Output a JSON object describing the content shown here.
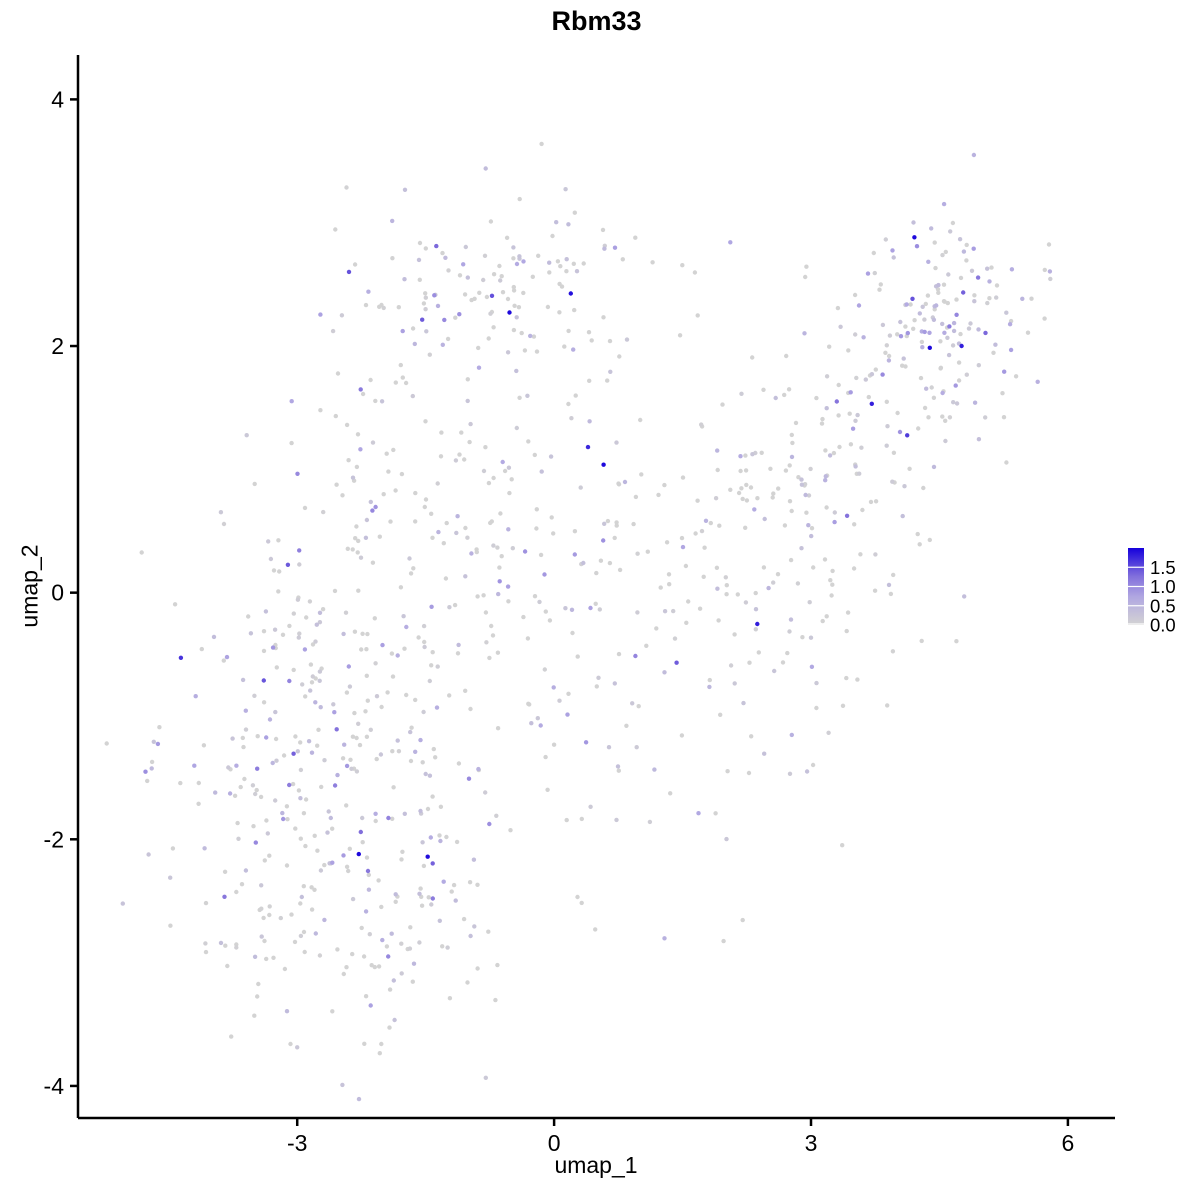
{
  "chart_data": {
    "type": "scatter",
    "title": "Rbm33",
    "xlabel": "umap_1",
    "ylabel": "umap_2",
    "x_ticks": [
      -3,
      0,
      3,
      6
    ],
    "y_ticks": [
      -4,
      -2,
      0,
      2,
      4
    ],
    "xlim": [
      -5.56,
      6.55
    ],
    "ylim": [
      -4.26,
      4.36
    ],
    "grid": false,
    "legend": {
      "position": "right",
      "labels": [
        "1.5",
        "1.0",
        "0.5",
        "0.0"
      ],
      "label_values": [
        1.5,
        1.0,
        0.5,
        0.0
      ],
      "tick_values": [
        0.0,
        0.5,
        1.0,
        1.5
      ],
      "bar_value_range": [
        0,
        2.0
      ]
    },
    "colors": {
      "background": "#ffffff",
      "axis": "#000000",
      "text": "#000000",
      "legend_tick": "#ffffff",
      "gradient_stops": [
        {
          "t": 0.0,
          "c": "#d3d3d3"
        },
        {
          "t": 0.35,
          "c": "#b3aae2"
        },
        {
          "t": 0.65,
          "c": "#7f6cdb"
        },
        {
          "t": 1.0,
          "c": "#1500dc"
        }
      ]
    },
    "value_range": [
      0,
      2.0
    ],
    "point_radius_px": 2.2,
    "seed": 1337,
    "point_generation": {
      "note": "approximation of the UMAP point cloud; values 0 = grey, up to ~2.0 = blue",
      "clusters": [
        {
          "name": "bottom-left-lobe",
          "n": 200,
          "cx": -2.5,
          "cy": -2.35,
          "sx": 1.0,
          "sy": 0.7,
          "rot": -12,
          "expr_prob": 0.45,
          "expr_scale": 0.42
        },
        {
          "name": "left-mid",
          "n": 170,
          "cx": -2.65,
          "cy": -0.8,
          "sx": 0.75,
          "sy": 0.8,
          "rot": 0,
          "expr_prob": 0.42,
          "expr_scale": 0.4
        },
        {
          "name": "center-body",
          "n": 200,
          "cx": -0.9,
          "cy": 0.5,
          "sx": 1.15,
          "sy": 0.95,
          "rot": 0,
          "expr_prob": 0.42,
          "expr_scale": 0.4
        },
        {
          "name": "top-arm",
          "n": 120,
          "cx": -0.7,
          "cy": 2.45,
          "sx": 0.92,
          "sy": 0.38,
          "rot": 4,
          "expr_prob": 0.42,
          "expr_scale": 0.4
        },
        {
          "name": "mid-right-sparse",
          "n": 95,
          "cx": 1.15,
          "cy": -0.5,
          "sx": 1.0,
          "sy": 1.1,
          "rot": -40,
          "expr_prob": 0.4,
          "expr_scale": 0.38
        },
        {
          "name": "right-arm",
          "n": 165,
          "cx": 3.15,
          "cy": 1.2,
          "sx": 1.15,
          "sy": 0.52,
          "rot": 33,
          "expr_prob": 0.45,
          "expr_scale": 0.45
        },
        {
          "name": "right-arm-lower",
          "n": 55,
          "cx": 3.3,
          "cy": 0.0,
          "sx": 0.85,
          "sy": 0.5,
          "rot": 30,
          "expr_prob": 0.4,
          "expr_scale": 0.4
        },
        {
          "name": "top-right-dense",
          "n": 120,
          "cx": 4.55,
          "cy": 2.2,
          "sx": 0.5,
          "sy": 0.44,
          "rot": 20,
          "expr_prob": 0.6,
          "expr_scale": 0.55
        },
        {
          "name": "left-outlier-clump",
          "n": 7,
          "cx": -4.66,
          "cy": -1.3,
          "sx": 0.07,
          "sy": 0.12,
          "rot": 0,
          "expr_prob": 0.5,
          "expr_scale": 0.3
        }
      ]
    }
  }
}
